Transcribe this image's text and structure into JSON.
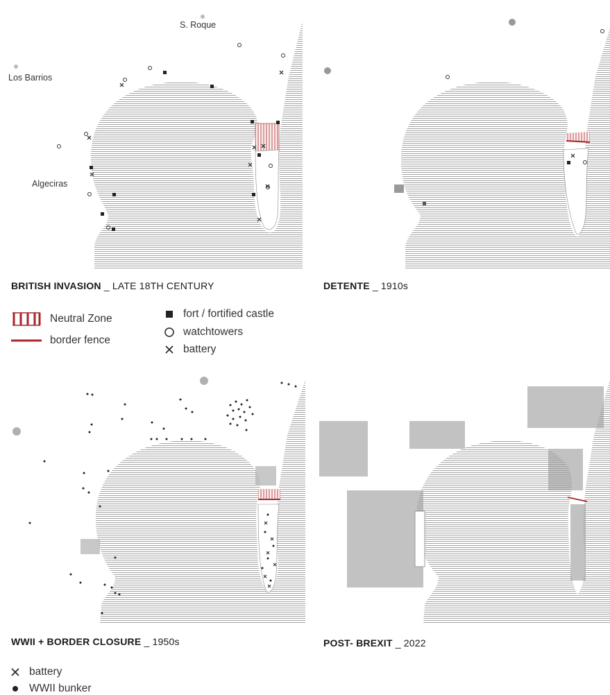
{
  "panels": [
    {
      "title_bold": "BRITISH INVASION",
      "title_rest": " _ LATE 18TH CENTURY"
    },
    {
      "title_bold": "DETENTE",
      "title_rest": " _ 1910s"
    },
    {
      "title_bold": "WWII + BORDER CLOSURE",
      "title_rest": " _ 1950s"
    },
    {
      "title_bold": "POST- BREXIT",
      "title_rest": " _ 2022"
    }
  ],
  "place_labels": {
    "san_roque": "S. Roque",
    "los_barrios": "Los Barrios",
    "algeciras": "Algeciras"
  },
  "legend_top": {
    "neutral_zone": "Neutral Zone",
    "border_fence": "border fence",
    "fort": "fort / fortified castle",
    "watchtowers": "watchtowers",
    "battery": "battery"
  },
  "legend_bottom": {
    "battery": "battery",
    "bunker": "WWII bunker"
  },
  "colors": {
    "border_red": "#a8262a",
    "sea_line": "#8a8a8a",
    "ink": "#222222"
  }
}
